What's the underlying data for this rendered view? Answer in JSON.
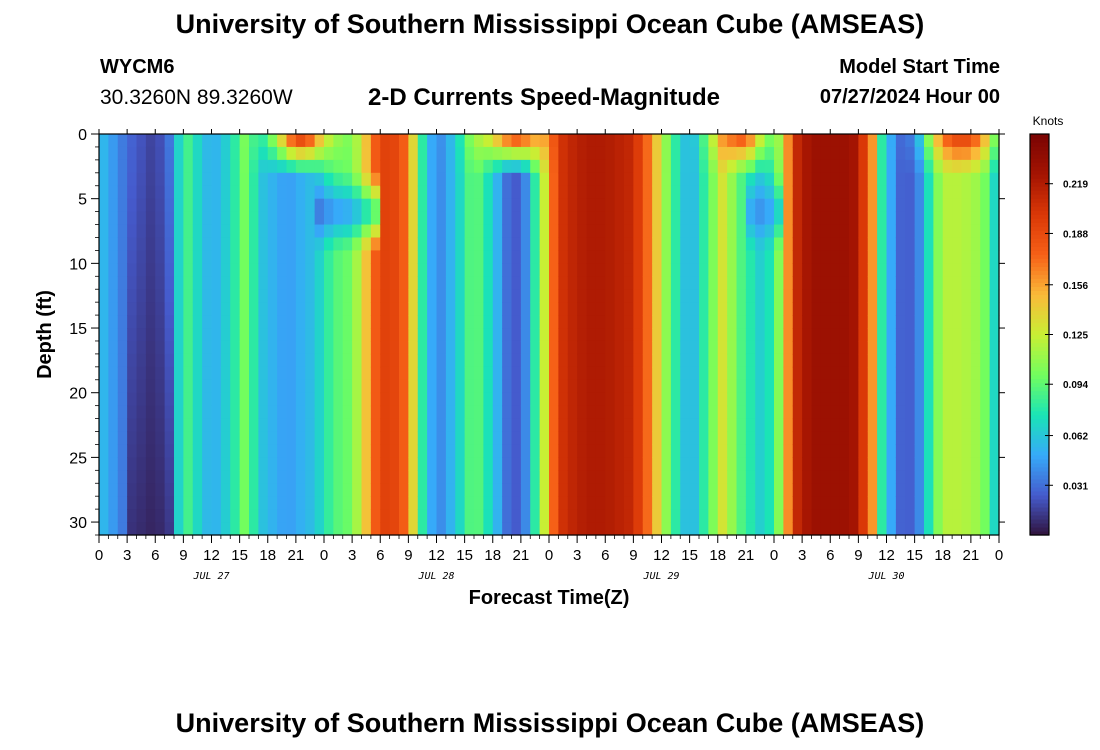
{
  "header": {
    "title": "University of Southern Mississippi Ocean Cube (AMSEAS)",
    "station": "WYCM6",
    "coordinates": "30.3260N  89.3260W",
    "subtitle": "2-D Currents Speed-Magnitude",
    "model_start_label": "Model Start Time",
    "model_start_value": "07/27/2024 Hour 00"
  },
  "footer": {
    "title": "University of Southern Mississippi Ocean Cube (AMSEAS)"
  },
  "chart_data": {
    "type": "heatmap",
    "title": "2-D Currents Speed-Magnitude",
    "xlabel": "Forecast Time(Z)",
    "ylabel": "Depth (ft)",
    "x_ticks": [
      "0",
      "3",
      "6",
      "9",
      "12",
      "15",
      "18",
      "21",
      "0",
      "3",
      "6",
      "9",
      "12",
      "15",
      "18",
      "21",
      "0",
      "3",
      "6",
      "9",
      "12",
      "15",
      "18",
      "21",
      "0",
      "3",
      "6",
      "9",
      "12",
      "15",
      "18",
      "21",
      "0"
    ],
    "x_range_hours": [
      0,
      96
    ],
    "date_labels": [
      {
        "label": "JUL 27",
        "hour": 12
      },
      {
        "label": "JUL 28",
        "hour": 36
      },
      {
        "label": "JUL 29",
        "hour": 60
      },
      {
        "label": "JUL 30",
        "hour": 84
      }
    ],
    "y_ticks": [
      0,
      5,
      10,
      15,
      20,
      25,
      30
    ],
    "y_range_ft": [
      0,
      31
    ],
    "colorbar": {
      "label": "Knots",
      "ticks": [
        "0.219",
        "0.188",
        "0.156",
        "0.125",
        "0.094",
        "0.062",
        "0.031"
      ],
      "tick_values": [
        0.219,
        0.188,
        0.156,
        0.125,
        0.094,
        0.062,
        0.031
      ],
      "range": [
        0,
        0.25
      ]
    },
    "speed_profile_hours": [
      0,
      3,
      6,
      8,
      9,
      10.5,
      12,
      14,
      15.5,
      17.5,
      20,
      23,
      25,
      27,
      28,
      30,
      32,
      33,
      34.5,
      36,
      38,
      40,
      42,
      44,
      45,
      45.5,
      47,
      49,
      50,
      52,
      54,
      57,
      59,
      61,
      63,
      65,
      66.5,
      68.5,
      71,
      73,
      74,
      76,
      78,
      80,
      81,
      82.5,
      83.5,
      85,
      86,
      87.5,
      89,
      90,
      92,
      94,
      95,
      96
    ],
    "speed_mid_knots": [
      0.06,
      0.03,
      0.015,
      0.04,
      0.095,
      0.07,
      0.05,
      0.07,
      0.1,
      0.06,
      0.045,
      0.06,
      0.09,
      0.1,
      0.13,
      0.195,
      0.19,
      0.165,
      0.08,
      0.035,
      0.06,
      0.1,
      0.065,
      0.02,
      0.03,
      0.04,
      0.1,
      0.2,
      0.21,
      0.22,
      0.22,
      0.21,
      0.16,
      0.09,
      0.05,
      0.09,
      0.13,
      0.09,
      0.06,
      0.12,
      0.205,
      0.23,
      0.23,
      0.23,
      0.22,
      0.16,
      0.08,
      0.035,
      0.02,
      0.04,
      0.09,
      0.12,
      0.12,
      0.11,
      0.09,
      0.05
    ]
  }
}
